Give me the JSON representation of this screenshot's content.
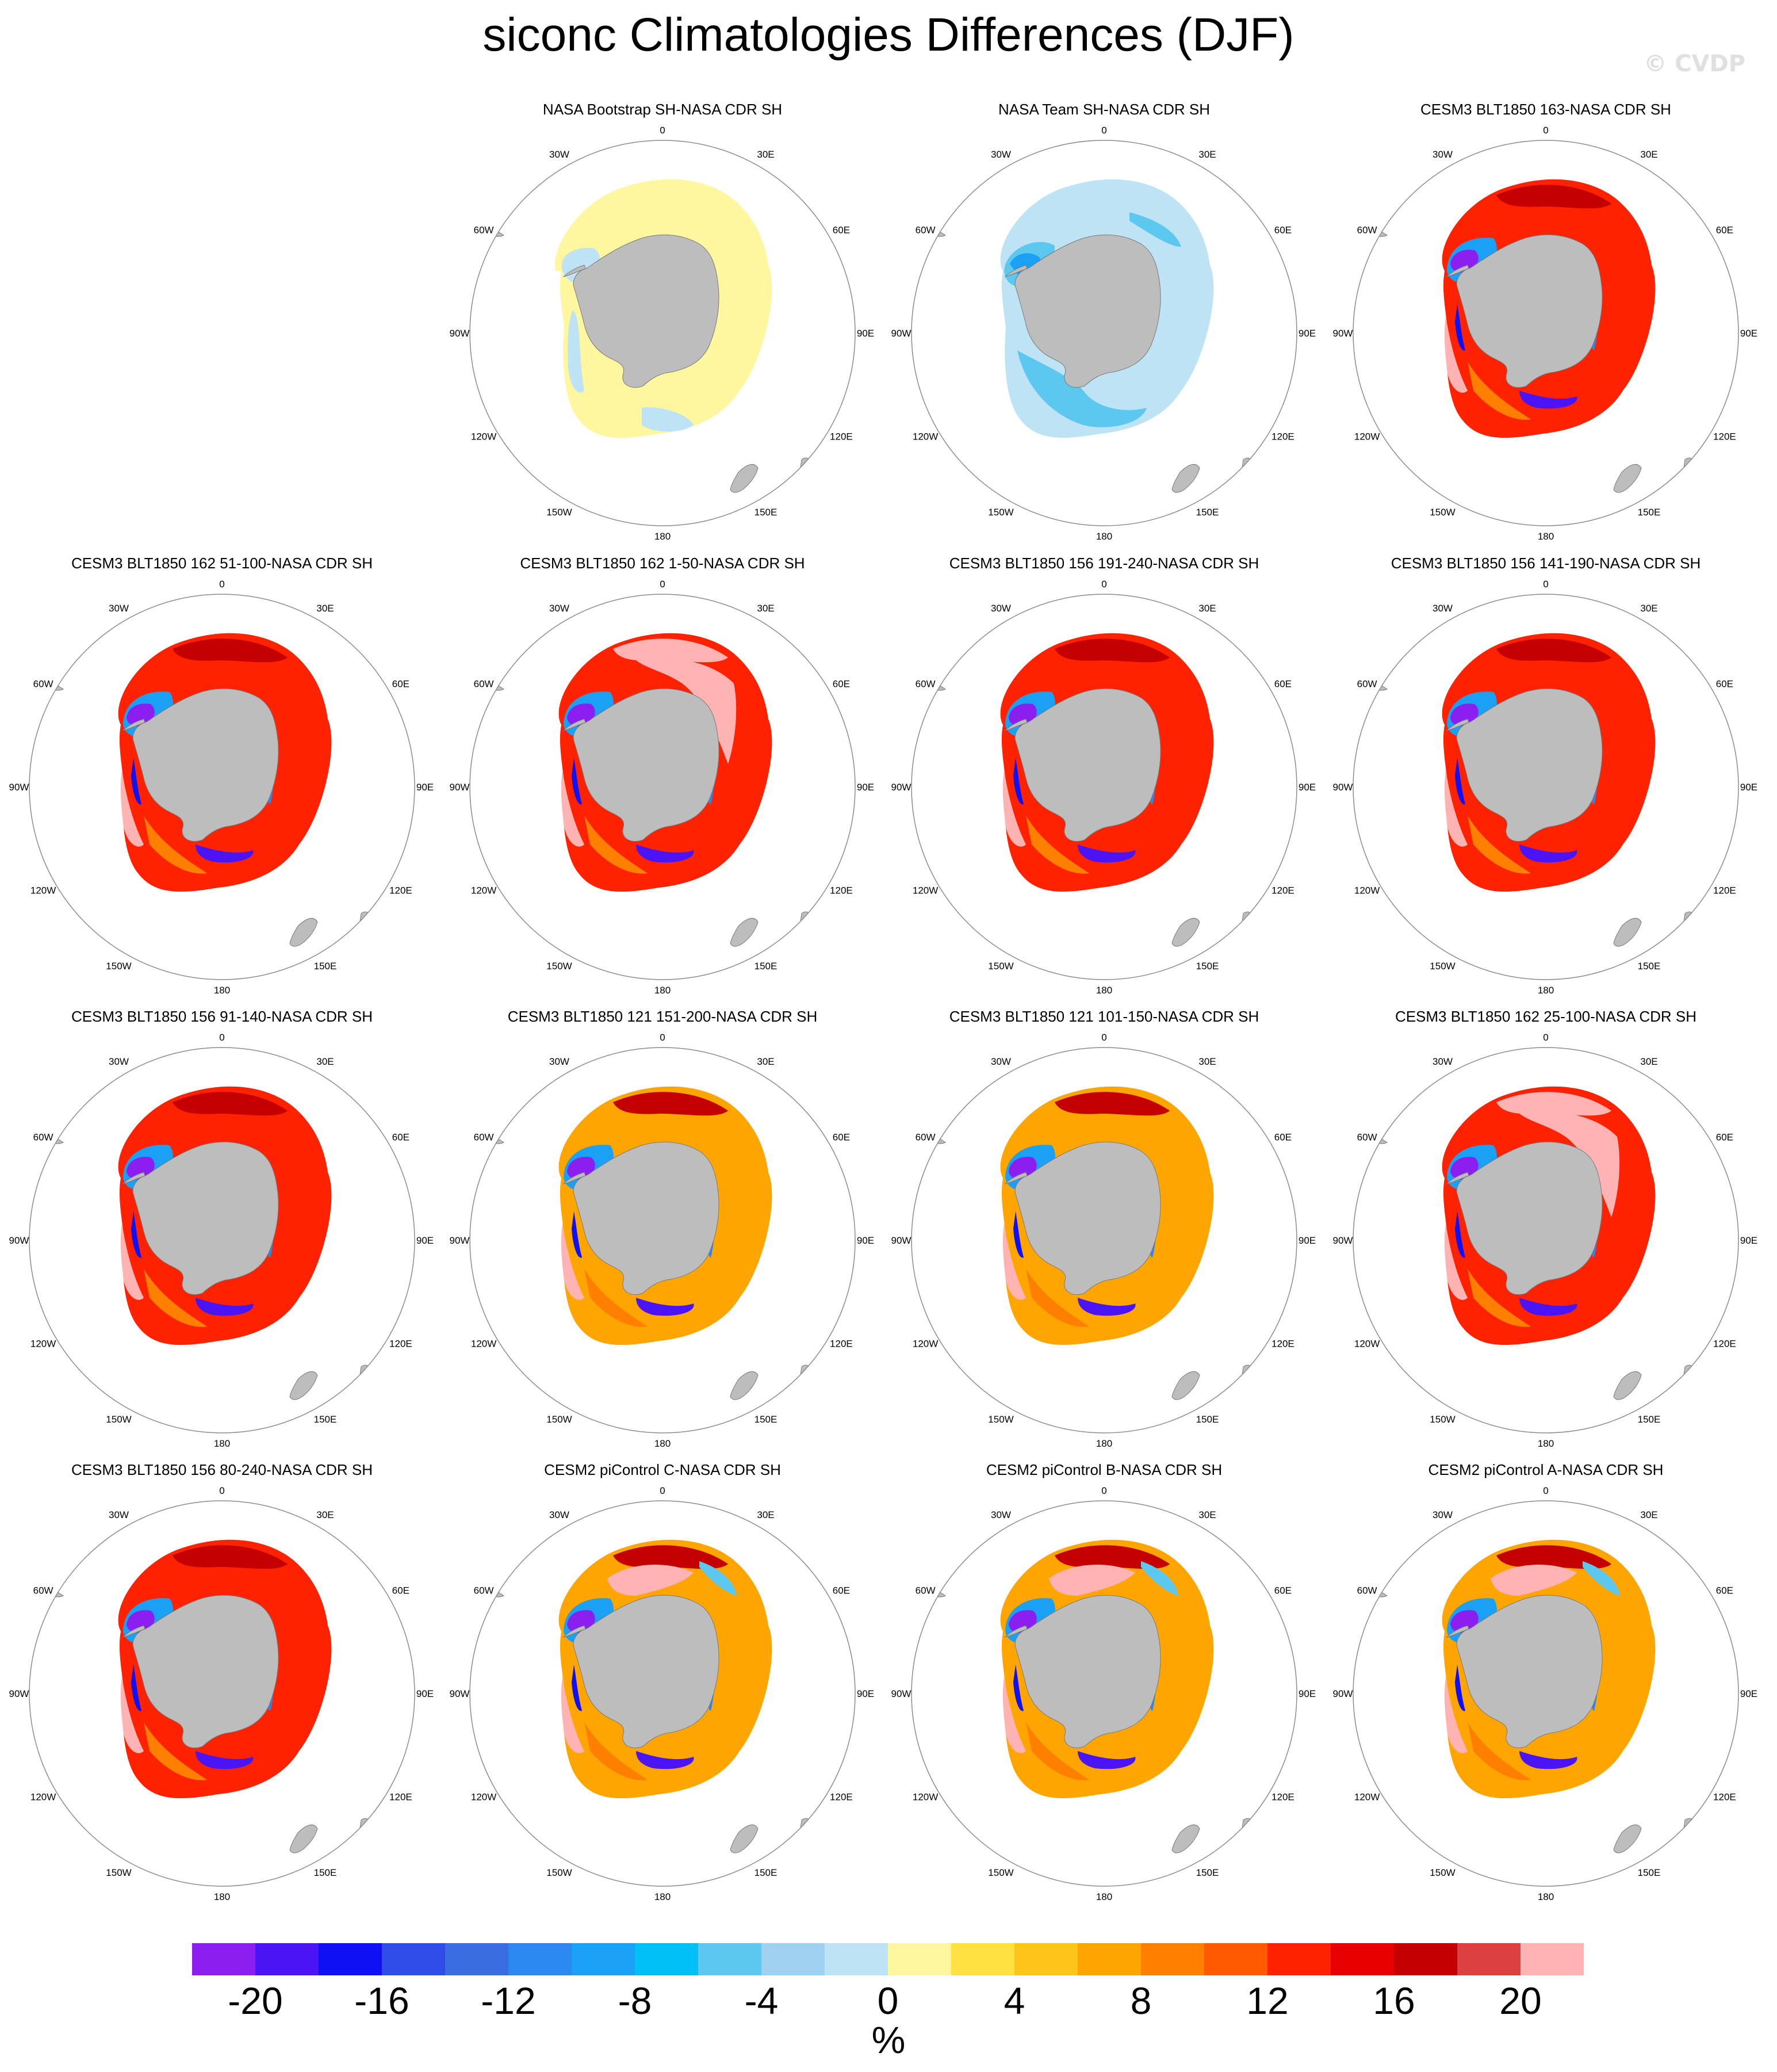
{
  "title": "siconc Climatologies Differences (DJF)",
  "watermark": "© CVDP",
  "lon_labels": [
    "0",
    "30E",
    "60E",
    "90E",
    "120E",
    "150E",
    "180",
    "150W",
    "120W",
    "90W",
    "60W",
    "30W"
  ],
  "panels": [
    {
      "title": "NASA Bootstrap SH-NASA CDR SH",
      "pattern": "bootstrap"
    },
    {
      "title": "NASA Team SH-NASA CDR SH",
      "pattern": "team"
    },
    {
      "title": "CESM3 BLT1850 163-NASA CDR SH",
      "pattern": "model"
    },
    {
      "title": "CESM3 BLT1850 162 51-100-NASA CDR SH",
      "pattern": "model"
    },
    {
      "title": "CESM3 BLT1850 162 1-50-NASA CDR SH",
      "pattern": "model_pink"
    },
    {
      "title": "CESM3 BLT1850 156 191-240-NASA CDR SH",
      "pattern": "model"
    },
    {
      "title": "CESM3 BLT1850 156 141-190-NASA CDR SH",
      "pattern": "model"
    },
    {
      "title": "CESM3 BLT1850 156 91-140-NASA CDR SH",
      "pattern": "model"
    },
    {
      "title": "CESM3 BLT1850 121 151-200-NASA CDR SH",
      "pattern": "model_orange"
    },
    {
      "title": "CESM3 BLT1850 121 101-150-NASA CDR SH",
      "pattern": "model_orange"
    },
    {
      "title": "CESM3 BLT1850 162 25-100-NASA CDR SH",
      "pattern": "model_pink"
    },
    {
      "title": "CESM3 BLT1850 156 80-240-NASA CDR SH",
      "pattern": "model"
    },
    {
      "title": "CESM2 piControl C-NASA CDR SH",
      "pattern": "cesm2"
    },
    {
      "title": "CESM2 piControl B-NASA CDR SH",
      "pattern": "cesm2"
    },
    {
      "title": "CESM2 piControl A-NASA CDR SH",
      "pattern": "cesm2"
    }
  ],
  "colorbar": {
    "colors": [
      "#8a1ff0",
      "#4b14f5",
      "#1010f5",
      "#2f4ce6",
      "#3a6ee0",
      "#2b88f0",
      "#1aa0f5",
      "#00bff5",
      "#5cc8f0",
      "#9ed2f0",
      "#bde3f5",
      "#fff6a0",
      "#ffe040",
      "#ffc41a",
      "#ffa500",
      "#ff8000",
      "#ff5a00",
      "#ff2200",
      "#e80000",
      "#c40000",
      "#dc4040",
      "#ffb3b3"
    ],
    "tick_labels": [
      "-20",
      "-16",
      "-12",
      "-8",
      "-4",
      "0",
      "4",
      "8",
      "12",
      "16",
      "20"
    ],
    "unit": "%"
  }
}
